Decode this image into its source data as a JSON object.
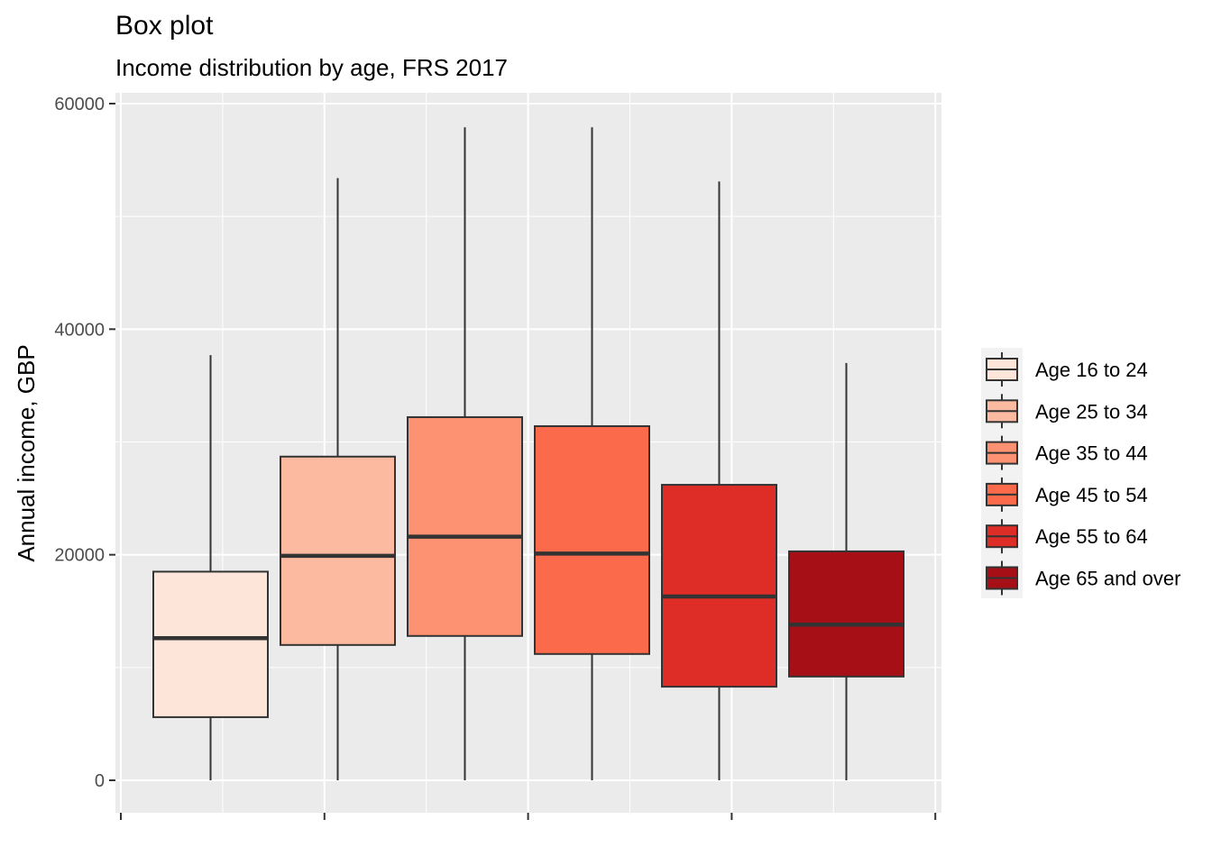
{
  "chart_data": {
    "type": "boxplot",
    "title": "Box plot",
    "subtitle": "Income distribution by age, FRS 2017",
    "ylabel": "Annual income, GBP",
    "xlabel": "",
    "ylim": [
      -2800,
      61000
    ],
    "y_ticks": [
      0,
      20000,
      40000,
      60000
    ],
    "y_tick_labels": [
      "0",
      "20000",
      "40000",
      "60000"
    ],
    "grid": true,
    "legend_position": "right",
    "series": [
      {
        "name": "Age 16 to 24",
        "color": "#fee5d9",
        "whisker_low": 0,
        "q1": 5600,
        "median": 12600,
        "q3": 18500,
        "whisker_high": 37700
      },
      {
        "name": "Age 25 to 34",
        "color": "#fcbba1",
        "whisker_low": 0,
        "q1": 12000,
        "median": 19900,
        "q3": 28700,
        "whisker_high": 53400
      },
      {
        "name": "Age 35 to 44",
        "color": "#fc9272",
        "whisker_low": 0,
        "q1": 12800,
        "median": 21600,
        "q3": 32200,
        "whisker_high": 57900
      },
      {
        "name": "Age 45 to 54",
        "color": "#fb6a4a",
        "whisker_low": 0,
        "q1": 11200,
        "median": 20100,
        "q3": 31400,
        "whisker_high": 57900
      },
      {
        "name": "Age 55 to 64",
        "color": "#de2d26",
        "whisker_low": 0,
        "q1": 8300,
        "median": 16300,
        "q3": 26200,
        "whisker_high": 53100
      },
      {
        "name": "Age 65 and over",
        "color": "#a50f15",
        "whisker_low": 0,
        "q1": 9200,
        "median": 13800,
        "q3": 20300,
        "whisker_high": 37000
      }
    ]
  }
}
